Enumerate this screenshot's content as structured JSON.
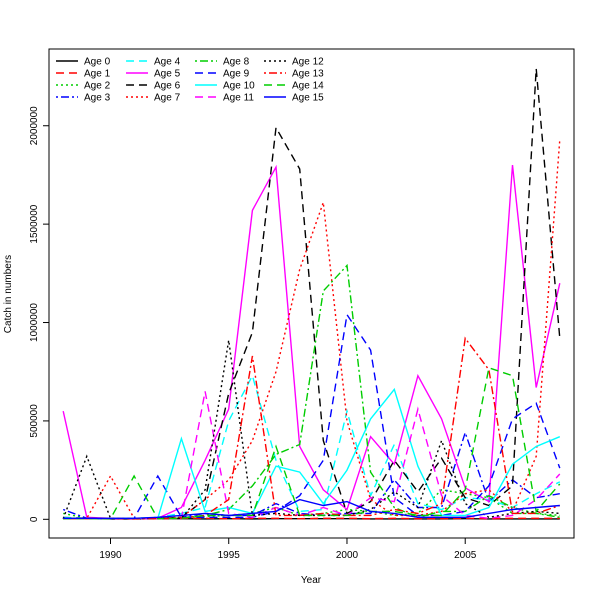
{
  "chart_data": {
    "type": "line",
    "xlabel": "Year",
    "ylabel": "Catch in numbers",
    "xlim": [
      1987.4,
      2009.6
    ],
    "ylim": [
      -95000,
      2390000
    ],
    "xticks": [
      1990,
      1995,
      2000,
      2005
    ],
    "yticks": [
      0,
      500000,
      1000000,
      1500000,
      2000000
    ],
    "grid": false,
    "legend_position": "top-left",
    "x": [
      1988,
      1989,
      1990,
      1991,
      1992,
      1993,
      1994,
      1995,
      1996,
      1997,
      1998,
      1999,
      2000,
      2001,
      2002,
      2003,
      2004,
      2005,
      2006,
      2007,
      2008,
      2009
    ],
    "series": [
      {
        "name": "Age 0",
        "color": "#000000",
        "dash": "solid",
        "values": [
          5000,
          3000,
          2000,
          2000,
          3000,
          3000,
          2000,
          3000,
          2000,
          3000,
          3000,
          3000,
          3000,
          2000,
          2000,
          2000,
          2000,
          3000,
          2000,
          2000,
          2000,
          2000
        ]
      },
      {
        "name": "Age 1",
        "color": "#ff0000",
        "dash": "dashed",
        "values": [
          10000,
          5000,
          3000,
          3000,
          5000,
          5000,
          5000,
          3000,
          5000,
          5000,
          3000,
          5000,
          5000,
          3000,
          5000,
          3000,
          3000,
          5000,
          3000,
          5000,
          5000,
          5000
        ]
      },
      {
        "name": "Age 2",
        "color": "#00cd00",
        "dash": "dotted",
        "values": [
          30000,
          5000,
          5000,
          5000,
          5000,
          10000,
          15000,
          20000,
          30000,
          60000,
          20000,
          30000,
          50000,
          40000,
          20000,
          30000,
          150000,
          130000,
          110000,
          30000,
          30000,
          20000
        ]
      },
      {
        "name": "Age 3",
        "color": "#0000ff",
        "dash": "dotdash",
        "values": [
          50000,
          5000,
          3000,
          5000,
          5000,
          10000,
          30000,
          20000,
          20000,
          80000,
          30000,
          20000,
          30000,
          30000,
          200000,
          60000,
          60000,
          440000,
          90000,
          200000,
          110000,
          130000
        ]
      },
      {
        "name": "Age 4",
        "color": "#00ffff",
        "dash": "dashed",
        "values": [
          10000,
          5000,
          5000,
          5000,
          10000,
          30000,
          60000,
          500000,
          730000,
          300000,
          40000,
          50000,
          550000,
          120000,
          380000,
          80000,
          50000,
          110000,
          100000,
          60000,
          130000,
          190000
        ]
      },
      {
        "name": "Age 5",
        "color": "#ff00ff",
        "dash": "solid",
        "values": [
          550000,
          10000,
          5000,
          5000,
          5000,
          60000,
          300000,
          560000,
          1570000,
          1790000,
          370000,
          150000,
          50000,
          420000,
          280000,
          730000,
          510000,
          160000,
          90000,
          1800000,
          670000,
          1200000
        ]
      },
      {
        "name": "Age 6",
        "color": "#000000",
        "dash": "dashed",
        "values": [
          5000,
          5000,
          5000,
          5000,
          5000,
          10000,
          100000,
          640000,
          950000,
          1990000,
          1780000,
          400000,
          30000,
          90000,
          300000,
          140000,
          310000,
          110000,
          70000,
          170000,
          2290000,
          920000
        ]
      },
      {
        "name": "Age 7",
        "color": "#ff0000",
        "dash": "dotted",
        "values": [
          5000,
          5000,
          220000,
          5000,
          5000,
          10000,
          100000,
          200000,
          400000,
          750000,
          1270000,
          1610000,
          500000,
          100000,
          20000,
          20000,
          40000,
          130000,
          150000,
          40000,
          320000,
          1930000
        ]
      },
      {
        "name": "Age 8",
        "color": "#00cd00",
        "dash": "dotdash",
        "values": [
          5000,
          5000,
          5000,
          5000,
          5000,
          5000,
          20000,
          50000,
          170000,
          330000,
          380000,
          1160000,
          1290000,
          240000,
          60000,
          10000,
          40000,
          40000,
          120000,
          60000,
          30000,
          10000
        ]
      },
      {
        "name": "Age 9",
        "color": "#0000ff",
        "dash": "dashed",
        "values": [
          3000,
          3000,
          3000,
          5000,
          220000,
          10000,
          10000,
          10000,
          10000,
          40000,
          120000,
          300000,
          1040000,
          860000,
          110000,
          20000,
          20000,
          40000,
          170000,
          510000,
          590000,
          260000
        ]
      },
      {
        "name": "Age 10",
        "color": "#00ffff",
        "dash": "solid",
        "values": [
          3000,
          3000,
          5000,
          5000,
          5000,
          410000,
          40000,
          60000,
          30000,
          270000,
          240000,
          80000,
          250000,
          510000,
          660000,
          270000,
          20000,
          20000,
          60000,
          280000,
          370000,
          420000
        ]
      },
      {
        "name": "Age 11",
        "color": "#ff00ff",
        "dash": "dashed",
        "values": [
          3000,
          3000,
          3000,
          3000,
          3000,
          5000,
          650000,
          30000,
          10000,
          60000,
          20000,
          60000,
          20000,
          110000,
          90000,
          560000,
          120000,
          20000,
          5000,
          20000,
          100000,
          230000
        ]
      },
      {
        "name": "Age 12",
        "color": "#000000",
        "dash": "dotted",
        "values": [
          3000,
          320000,
          5000,
          3000,
          3000,
          5000,
          150000,
          910000,
          20000,
          30000,
          20000,
          20000,
          20000,
          50000,
          140000,
          60000,
          400000,
          80000,
          10000,
          30000,
          40000,
          30000
        ]
      },
      {
        "name": "Age 13",
        "color": "#ff0000",
        "dash": "dotdash",
        "values": [
          3000,
          3000,
          5000,
          3000,
          3000,
          5000,
          20000,
          100000,
          830000,
          20000,
          20000,
          30000,
          20000,
          20000,
          50000,
          30000,
          80000,
          920000,
          760000,
          30000,
          30000,
          70000
        ]
      },
      {
        "name": "Age 14",
        "color": "#00cd00",
        "dash": "dashed",
        "values": [
          3000,
          3000,
          3000,
          220000,
          3000,
          5000,
          20000,
          20000,
          20000,
          370000,
          20000,
          20000,
          20000,
          40000,
          40000,
          20000,
          20000,
          150000,
          770000,
          730000,
          40000,
          180000
        ]
      },
      {
        "name": "Age 15",
        "color": "#0000ff",
        "dash": "solid",
        "values": [
          5000,
          5000,
          5000,
          5000,
          10000,
          20000,
          30000,
          20000,
          30000,
          40000,
          100000,
          70000,
          90000,
          40000,
          30000,
          10000,
          10000,
          10000,
          30000,
          50000,
          60000,
          70000
        ]
      }
    ]
  }
}
